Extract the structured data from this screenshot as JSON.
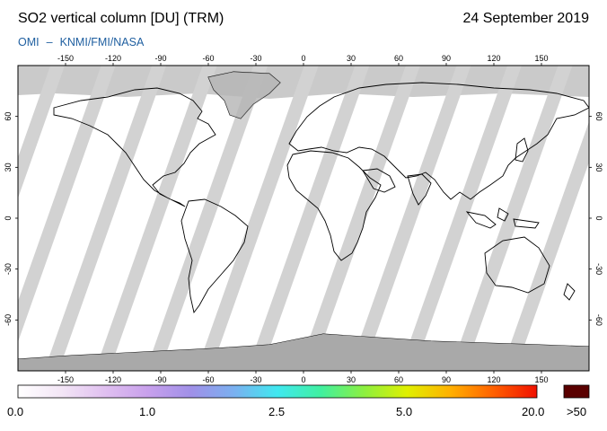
{
  "header": {
    "title": "SO2 vertical column [DU] (TRM)",
    "date": "24 September 2019",
    "credit_left": "OMI",
    "credit_sep": "–",
    "credit_right": "KNMI/FMI/NASA"
  },
  "map": {
    "lon_ticks": [
      -150,
      -120,
      -90,
      -60,
      -30,
      0,
      30,
      60,
      90,
      120,
      150
    ],
    "lat_ticks": [
      60,
      30,
      0,
      -30,
      -60
    ],
    "lon_range": [
      -180,
      180
    ],
    "lat_range": [
      -90,
      90
    ],
    "colors": {
      "background": "#ffffff",
      "swath": "#d2d2d2",
      "no_data": "#c8c8c8",
      "land_nodata": "#a7a7a7",
      "coast": "#000000"
    }
  },
  "colorbar": {
    "labels": [
      "0.0",
      "1.0",
      "2.5",
      "5.0",
      "20.0",
      ">50"
    ],
    "gradient": [
      "#ffffff",
      "#f3e6f6",
      "#e0c0f0",
      "#c8a0ec",
      "#a090e8",
      "#7ab0f0",
      "#40e8f0",
      "#40f0a0",
      "#8cf040",
      "#e0f000",
      "#ffb000",
      "#ff6000",
      "#f01000"
    ],
    "over_color": "#5a0000"
  }
}
